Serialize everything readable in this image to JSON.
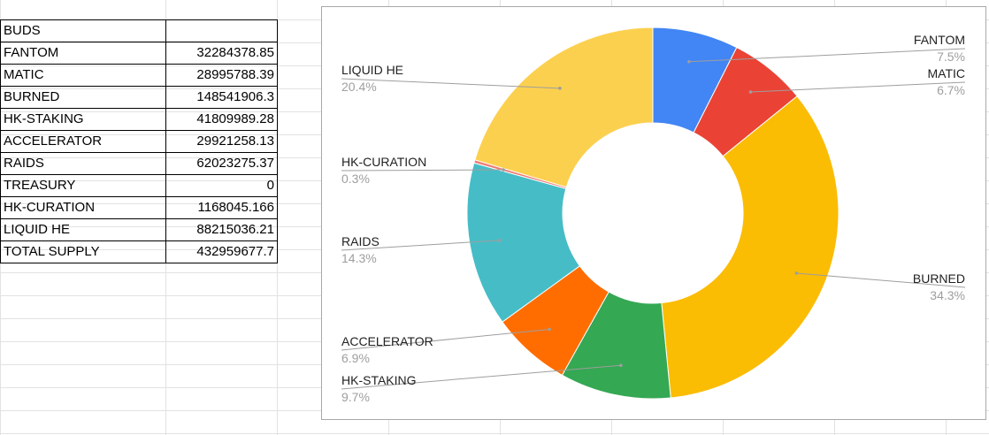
{
  "sheet": {
    "table_rows": [
      {
        "label": "BUDS",
        "value": ""
      },
      {
        "label": "FANTOM",
        "value": "32284378.85"
      },
      {
        "label": "MATIC",
        "value": "28995788.39"
      },
      {
        "label": "BURNED",
        "value": "148541906.3"
      },
      {
        "label": "HK-STAKING",
        "value": "41809989.28"
      },
      {
        "label": "ACCELERATOR",
        "value": "29921258.13"
      },
      {
        "label": "RAIDS",
        "value": "62023275.37"
      },
      {
        "label": "TREASURY",
        "value": "0"
      },
      {
        "label": "HK-CURATION",
        "value": "1168045.166"
      },
      {
        "label": "LIQUID HE",
        "value": "88215036.21"
      },
      {
        "label": "TOTAL SUPPLY",
        "value": "432959677.7"
      }
    ]
  },
  "chart_data": {
    "type": "pie",
    "donut": true,
    "title": "",
    "start_angle_deg": 0,
    "direction": "clockwise",
    "slices": [
      {
        "name": "FANTOM",
        "value": 32284378.85,
        "percent_label": "7.5%",
        "color": "#4285f4",
        "label_side": "right"
      },
      {
        "name": "MATIC",
        "value": 28995788.39,
        "percent_label": "6.7%",
        "color": "#ea4335",
        "label_side": "right"
      },
      {
        "name": "BURNED",
        "value": 148541906.3,
        "percent_label": "34.3%",
        "color": "#fbbc04",
        "label_side": "right"
      },
      {
        "name": "HK-STAKING",
        "value": 41809989.28,
        "percent_label": "9.7%",
        "color": "#34a853",
        "label_side": "left"
      },
      {
        "name": "ACCELERATOR",
        "value": 29921258.13,
        "percent_label": "6.9%",
        "color": "#ff6d01",
        "label_side": "left"
      },
      {
        "name": "RAIDS",
        "value": 62023275.37,
        "percent_label": "14.3%",
        "color": "#46bdc6",
        "label_side": "left"
      },
      {
        "name": "TREASURY",
        "value": 0,
        "percent_label": "",
        "color": "#7baaf7",
        "label_side": "none"
      },
      {
        "name": "HK-CURATION",
        "value": 1168045.166,
        "percent_label": "0.3%",
        "color": "#f07b72",
        "label_side": "left"
      },
      {
        "name": "LIQUID HE",
        "value": 88215036.21,
        "percent_label": "20.4%",
        "color": "#fcd04f",
        "label_side": "left"
      }
    ]
  }
}
